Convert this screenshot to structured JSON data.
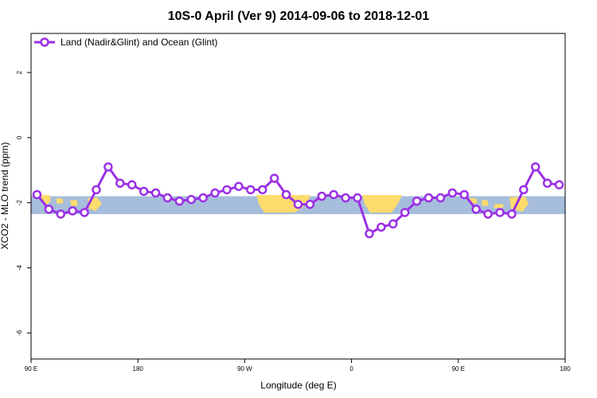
{
  "chart_data": {
    "type": "line",
    "title": "10S-0 April (Ver 9)   2014-09-06 to 2018-12-01",
    "xlabel": "Longitude (deg E)",
    "ylabel": "XCO2 - MLO trend (ppm)",
    "xlim": [
      90,
      540
    ],
    "ylim": [
      -6.8,
      3.2
    ],
    "xticks": [
      {
        "value": 90,
        "label": "90 E"
      },
      {
        "value": 180,
        "label": "180"
      },
      {
        "value": 270,
        "label": "90 W"
      },
      {
        "value": 360,
        "label": "0"
      },
      {
        "value": 450,
        "label": "90 E"
      },
      {
        "value": 540,
        "label": "180"
      }
    ],
    "yticks": [
      {
        "value": 2,
        "label": "2"
      },
      {
        "value": 0,
        "label": "0"
      },
      {
        "value": -2,
        "label": "-2"
      },
      {
        "value": -4,
        "label": "-4"
      },
      {
        "value": -6,
        "label": "-6"
      }
    ],
    "grid": false,
    "legend_position": "top-left",
    "series": [
      {
        "name": "Land (Nadir&Glint) and Ocean (Glint)",
        "color": "#9b30e6",
        "x": [
          95,
          105,
          115,
          125,
          135,
          145,
          155,
          165,
          175,
          185,
          195,
          205,
          215,
          225,
          235,
          245,
          255,
          265,
          275,
          285,
          295,
          305,
          315,
          325,
          335,
          345,
          355,
          365,
          375,
          385,
          395,
          405,
          415,
          425,
          435,
          445,
          455,
          465,
          475,
          485,
          495,
          505,
          515,
          525,
          535
        ],
        "y": [
          -1.75,
          -2.2,
          -2.35,
          -2.25,
          -2.3,
          -1.6,
          -0.9,
          -1.4,
          -1.45,
          -1.65,
          -1.7,
          -1.85,
          -1.95,
          -1.9,
          -1.85,
          -1.7,
          -1.6,
          -1.5,
          -1.6,
          -1.6,
          -1.25,
          -1.75,
          -2.05,
          -2.05,
          -1.8,
          -1.75,
          -1.85,
          -1.85,
          -2.95,
          -2.75,
          -2.65,
          -2.3,
          -1.95,
          -1.85,
          -1.85,
          -1.7,
          -1.75,
          -2.2,
          -2.35,
          -2.3,
          -2.35,
          -1.6,
          -0.9,
          -1.4,
          -1.45
        ]
      }
    ],
    "map_strip": {
      "ocean_color": "#a6bddb",
      "land_color": "#fddc6c",
      "y_range": [
        -2.35,
        -1.8
      ]
    }
  }
}
